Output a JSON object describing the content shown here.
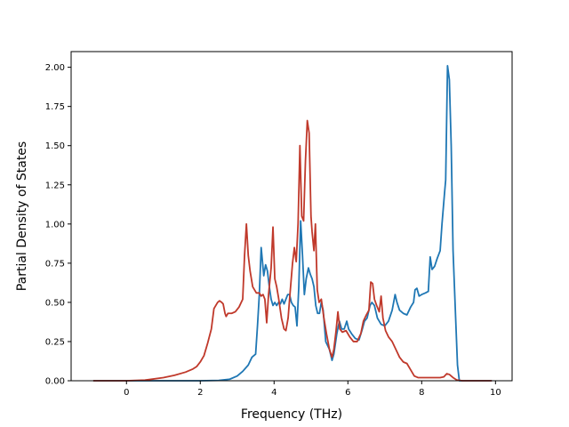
{
  "chart_data": {
    "type": "line",
    "title": "",
    "xlabel": "Frequency (THz)",
    "ylabel": "Partial Density of States",
    "xlim": [
      -1.5,
      10.45
    ],
    "ylim": [
      0.0,
      2.1
    ],
    "grid": false,
    "x_ticks": [
      0,
      2,
      4,
      6,
      8,
      10
    ],
    "x_tick_labels": [
      "0",
      "2",
      "4",
      "6",
      "8",
      "10"
    ],
    "y_ticks": [
      0.0,
      0.25,
      0.5,
      0.75,
      1.0,
      1.25,
      1.5,
      1.75,
      2.0
    ],
    "y_tick_labels": [
      "0.00",
      "0.25",
      "0.50",
      "0.75",
      "1.00",
      "1.25",
      "1.50",
      "1.75",
      "2.00"
    ],
    "series": [
      {
        "color": "#1f77b4",
        "points": [
          [
            -0.9,
            0.0
          ],
          [
            1.0,
            0.0
          ],
          [
            2.0,
            0.0
          ],
          [
            2.5,
            0.002
          ],
          [
            2.8,
            0.01
          ],
          [
            3.0,
            0.03
          ],
          [
            3.15,
            0.06
          ],
          [
            3.3,
            0.1
          ],
          [
            3.4,
            0.15
          ],
          [
            3.5,
            0.17
          ],
          [
            3.55,
            0.35
          ],
          [
            3.6,
            0.55
          ],
          [
            3.65,
            0.85
          ],
          [
            3.72,
            0.67
          ],
          [
            3.77,
            0.74
          ],
          [
            3.82,
            0.7
          ],
          [
            3.87,
            0.6
          ],
          [
            3.92,
            0.52
          ],
          [
            3.97,
            0.48
          ],
          [
            4.02,
            0.5
          ],
          [
            4.07,
            0.48
          ],
          [
            4.12,
            0.5
          ],
          [
            4.17,
            0.49
          ],
          [
            4.22,
            0.52
          ],
          [
            4.27,
            0.49
          ],
          [
            4.32,
            0.52
          ],
          [
            4.37,
            0.55
          ],
          [
            4.42,
            0.55
          ],
          [
            4.47,
            0.5
          ],
          [
            4.52,
            0.48
          ],
          [
            4.57,
            0.47
          ],
          [
            4.62,
            0.35
          ],
          [
            4.67,
            0.6
          ],
          [
            4.72,
            1.02
          ],
          [
            4.77,
            0.8
          ],
          [
            4.82,
            0.55
          ],
          [
            4.87,
            0.65
          ],
          [
            4.93,
            0.72
          ],
          [
            4.98,
            0.68
          ],
          [
            5.03,
            0.65
          ],
          [
            5.08,
            0.6
          ],
          [
            5.13,
            0.48
          ],
          [
            5.18,
            0.43
          ],
          [
            5.23,
            0.43
          ],
          [
            5.28,
            0.5
          ],
          [
            5.33,
            0.45
          ],
          [
            5.4,
            0.25
          ],
          [
            5.5,
            0.2
          ],
          [
            5.57,
            0.13
          ],
          [
            5.62,
            0.17
          ],
          [
            5.7,
            0.3
          ],
          [
            5.77,
            0.38
          ],
          [
            5.83,
            0.33
          ],
          [
            5.9,
            0.33
          ],
          [
            5.97,
            0.38
          ],
          [
            6.02,
            0.33
          ],
          [
            6.1,
            0.3
          ],
          [
            6.2,
            0.27
          ],
          [
            6.3,
            0.26
          ],
          [
            6.38,
            0.32
          ],
          [
            6.45,
            0.38
          ],
          [
            6.52,
            0.4
          ],
          [
            6.6,
            0.48
          ],
          [
            6.65,
            0.5
          ],
          [
            6.72,
            0.48
          ],
          [
            6.8,
            0.4
          ],
          [
            6.9,
            0.36
          ],
          [
            7.0,
            0.35
          ],
          [
            7.1,
            0.38
          ],
          [
            7.2,
            0.45
          ],
          [
            7.28,
            0.55
          ],
          [
            7.33,
            0.5
          ],
          [
            7.4,
            0.45
          ],
          [
            7.5,
            0.43
          ],
          [
            7.6,
            0.42
          ],
          [
            7.7,
            0.47
          ],
          [
            7.78,
            0.5
          ],
          [
            7.82,
            0.58
          ],
          [
            7.87,
            0.59
          ],
          [
            7.93,
            0.54
          ],
          [
            8.0,
            0.55
          ],
          [
            8.1,
            0.56
          ],
          [
            8.18,
            0.57
          ],
          [
            8.23,
            0.79
          ],
          [
            8.28,
            0.71
          ],
          [
            8.35,
            0.73
          ],
          [
            8.42,
            0.78
          ],
          [
            8.5,
            0.83
          ],
          [
            8.55,
            1.0
          ],
          [
            8.62,
            1.2
          ],
          [
            8.65,
            1.28
          ],
          [
            8.7,
            2.01
          ],
          [
            8.75,
            1.92
          ],
          [
            8.8,
            1.5
          ],
          [
            8.85,
            0.83
          ],
          [
            8.92,
            0.4
          ],
          [
            8.97,
            0.1
          ],
          [
            9.02,
            0.0
          ],
          [
            9.5,
            0.0
          ],
          [
            9.9,
            0.0
          ]
        ]
      },
      {
        "color": "#c0392b",
        "points": [
          [
            -0.9,
            0.0
          ],
          [
            0.0,
            0.0
          ],
          [
            0.5,
            0.004
          ],
          [
            1.0,
            0.02
          ],
          [
            1.3,
            0.035
          ],
          [
            1.6,
            0.055
          ],
          [
            1.8,
            0.075
          ],
          [
            1.9,
            0.09
          ],
          [
            2.0,
            0.12
          ],
          [
            2.1,
            0.16
          ],
          [
            2.2,
            0.24
          ],
          [
            2.3,
            0.33
          ],
          [
            2.37,
            0.46
          ],
          [
            2.42,
            0.48
          ],
          [
            2.47,
            0.5
          ],
          [
            2.52,
            0.51
          ],
          [
            2.58,
            0.5
          ],
          [
            2.62,
            0.49
          ],
          [
            2.67,
            0.43
          ],
          [
            2.7,
            0.41
          ],
          [
            2.75,
            0.43
          ],
          [
            2.85,
            0.43
          ],
          [
            2.95,
            0.44
          ],
          [
            3.05,
            0.47
          ],
          [
            3.15,
            0.52
          ],
          [
            3.2,
            0.8
          ],
          [
            3.25,
            1.0
          ],
          [
            3.3,
            0.8
          ],
          [
            3.35,
            0.7
          ],
          [
            3.42,
            0.6
          ],
          [
            3.52,
            0.56
          ],
          [
            3.6,
            0.56
          ],
          [
            3.65,
            0.54
          ],
          [
            3.7,
            0.55
          ],
          [
            3.75,
            0.52
          ],
          [
            3.8,
            0.37
          ],
          [
            3.85,
            0.55
          ],
          [
            3.92,
            0.72
          ],
          [
            3.97,
            0.98
          ],
          [
            4.02,
            0.65
          ],
          [
            4.07,
            0.6
          ],
          [
            4.12,
            0.53
          ],
          [
            4.2,
            0.4
          ],
          [
            4.27,
            0.33
          ],
          [
            4.32,
            0.32
          ],
          [
            4.38,
            0.4
          ],
          [
            4.43,
            0.55
          ],
          [
            4.5,
            0.75
          ],
          [
            4.55,
            0.85
          ],
          [
            4.6,
            0.76
          ],
          [
            4.65,
            1.0
          ],
          [
            4.7,
            1.5
          ],
          [
            4.75,
            1.05
          ],
          [
            4.8,
            1.02
          ],
          [
            4.85,
            1.4
          ],
          [
            4.9,
            1.66
          ],
          [
            4.95,
            1.58
          ],
          [
            5.0,
            1.05
          ],
          [
            5.03,
            0.95
          ],
          [
            5.08,
            0.83
          ],
          [
            5.12,
            1.0
          ],
          [
            5.17,
            0.58
          ],
          [
            5.22,
            0.5
          ],
          [
            5.28,
            0.52
          ],
          [
            5.35,
            0.4
          ],
          [
            5.42,
            0.3
          ],
          [
            5.5,
            0.2
          ],
          [
            5.57,
            0.15
          ],
          [
            5.62,
            0.2
          ],
          [
            5.68,
            0.32
          ],
          [
            5.73,
            0.44
          ],
          [
            5.78,
            0.33
          ],
          [
            5.85,
            0.31
          ],
          [
            5.95,
            0.32
          ],
          [
            6.05,
            0.28
          ],
          [
            6.15,
            0.25
          ],
          [
            6.25,
            0.25
          ],
          [
            6.35,
            0.3
          ],
          [
            6.42,
            0.38
          ],
          [
            6.5,
            0.42
          ],
          [
            6.57,
            0.45
          ],
          [
            6.62,
            0.63
          ],
          [
            6.67,
            0.62
          ],
          [
            6.72,
            0.52
          ],
          [
            6.78,
            0.48
          ],
          [
            6.85,
            0.44
          ],
          [
            6.9,
            0.54
          ],
          [
            6.95,
            0.4
          ],
          [
            7.02,
            0.32
          ],
          [
            7.1,
            0.28
          ],
          [
            7.2,
            0.25
          ],
          [
            7.3,
            0.2
          ],
          [
            7.4,
            0.15
          ],
          [
            7.5,
            0.12
          ],
          [
            7.6,
            0.11
          ],
          [
            7.7,
            0.07
          ],
          [
            7.8,
            0.03
          ],
          [
            7.9,
            0.02
          ],
          [
            8.2,
            0.02
          ],
          [
            8.5,
            0.02
          ],
          [
            8.6,
            0.025
          ],
          [
            8.68,
            0.045
          ],
          [
            8.75,
            0.04
          ],
          [
            8.85,
            0.02
          ],
          [
            8.95,
            0.005
          ],
          [
            9.1,
            0.0
          ],
          [
            9.5,
            0.0
          ],
          [
            9.9,
            0.0
          ]
        ]
      }
    ]
  }
}
